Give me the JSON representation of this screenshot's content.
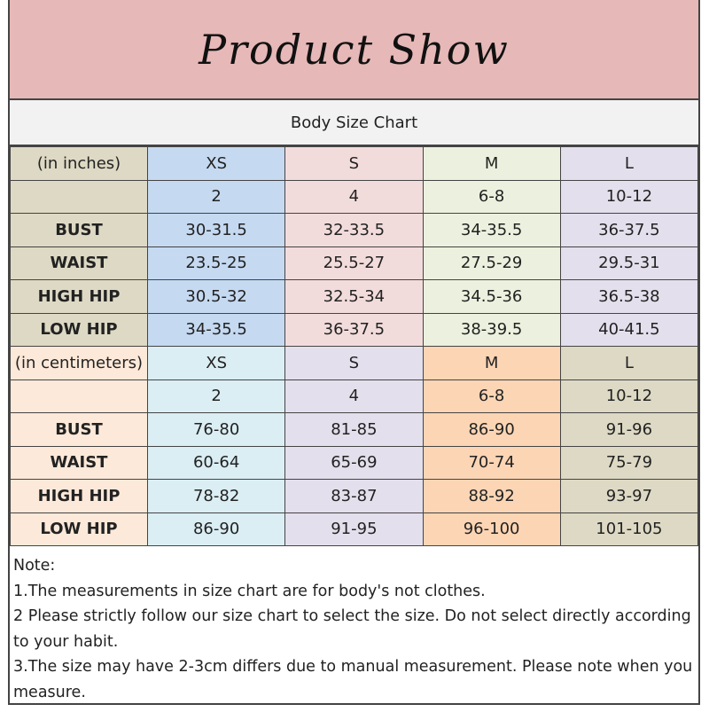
{
  "header": {
    "title": "Product Show"
  },
  "subtitle": "Body Size Chart",
  "colors": {
    "header": "#e6b8b7",
    "inches": {
      "label": "#ddd9c4",
      "XS": "#c5d9f1",
      "S": "#f2dcdb",
      "M": "#ebf1de",
      "L": "#e4dfec"
    },
    "cm": {
      "label": "#fde9d9",
      "XS": "#daeef3",
      "S": "#e4dfec",
      "M": "#fcd5b4",
      "L": "#ddd9c4"
    }
  },
  "inches": {
    "unit_label": "(in inches)",
    "sizes": [
      "XS",
      "S",
      "M",
      "L"
    ],
    "numeric": [
      "2",
      "4",
      "6-8",
      "10-12"
    ],
    "rows": [
      {
        "label": "BUST",
        "values": [
          "30-31.5",
          "32-33.5",
          "34-35.5",
          "36-37.5"
        ]
      },
      {
        "label": "WAIST",
        "values": [
          "23.5-25",
          "25.5-27",
          "27.5-29",
          "29.5-31"
        ]
      },
      {
        "label": "HIGH HIP",
        "values": [
          "30.5-32",
          "32.5-34",
          "34.5-36",
          "36.5-38"
        ]
      },
      {
        "label": "LOW HIP",
        "values": [
          "34-35.5",
          "36-37.5",
          "38-39.5",
          "40-41.5"
        ]
      }
    ]
  },
  "cm": {
    "unit_label": "(in centimeters)",
    "sizes": [
      "XS",
      "S",
      "M",
      "L"
    ],
    "numeric": [
      "2",
      "4",
      "6-8",
      "10-12"
    ],
    "rows": [
      {
        "label": "BUST",
        "values": [
          "76-80",
          "81-85",
          "86-90",
          "91-96"
        ]
      },
      {
        "label": "WAIST",
        "values": [
          "60-64",
          "65-69",
          "70-74",
          "75-79"
        ]
      },
      {
        "label": "HIGH HIP",
        "values": [
          "78-82",
          "83-87",
          "88-92",
          "93-97"
        ]
      },
      {
        "label": "LOW HIP",
        "values": [
          "86-90",
          "91-95",
          "96-100",
          "101-105"
        ]
      }
    ]
  },
  "notes": [
    "Note:",
    "1.The measurements in size chart are for body's not clothes.",
    "2 Please strictly follow our size chart to select the size. Do not select directly according to your habit.",
    "3.The size may have 2-3cm differs due to manual measurement. Please note when you measure."
  ]
}
